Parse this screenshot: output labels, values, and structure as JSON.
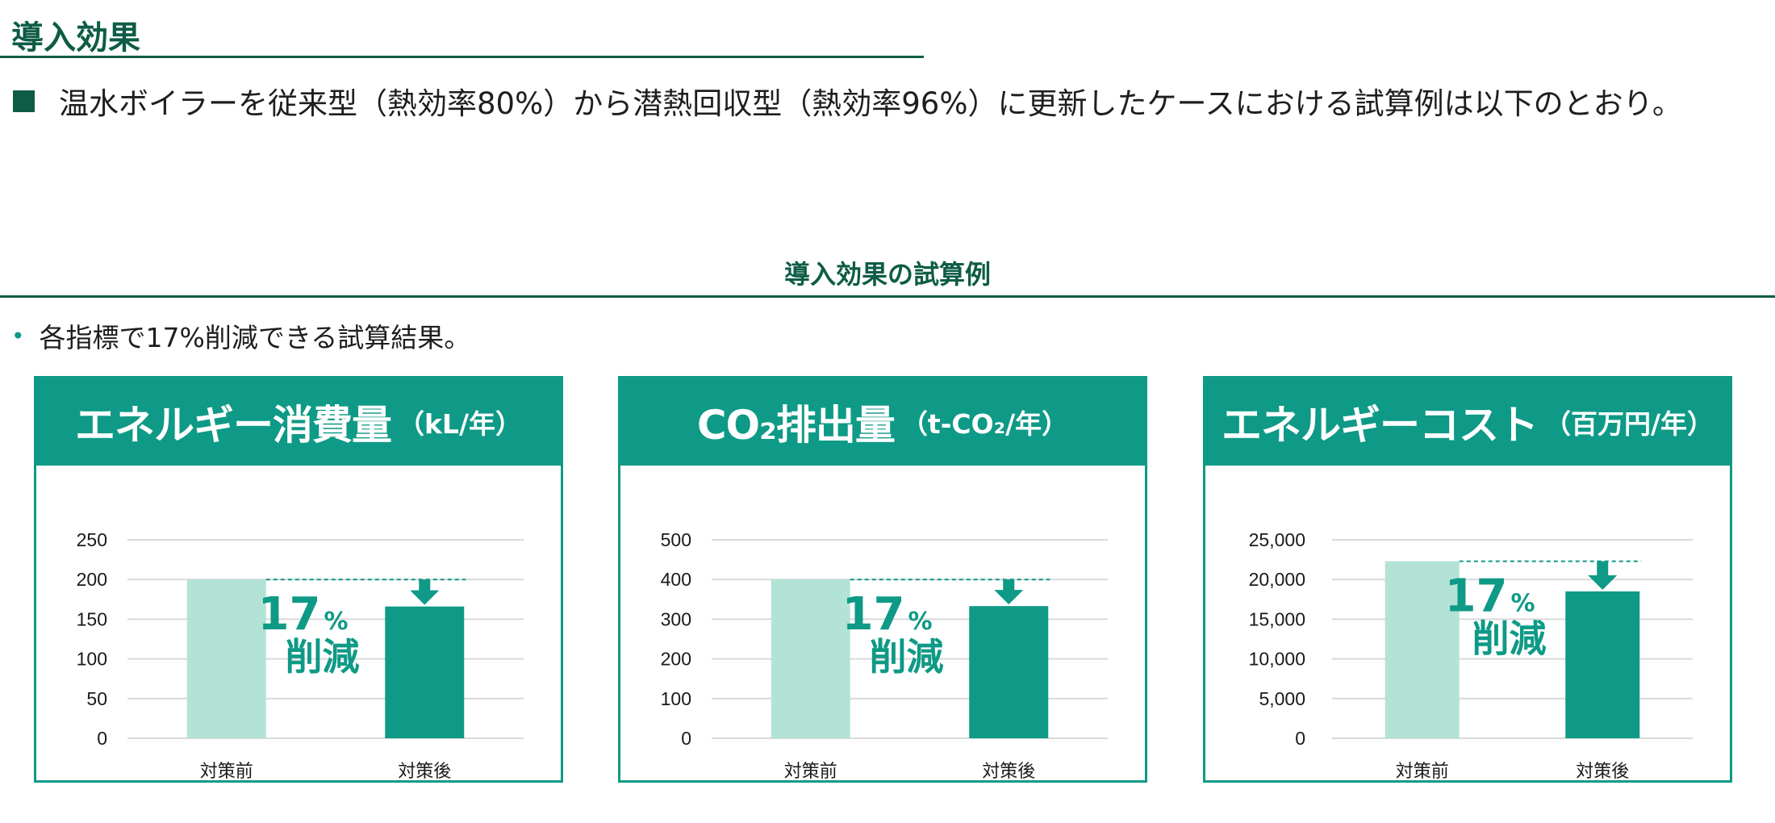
{
  "header": {
    "title": "導入効果",
    "lead": "温水ボイラーを従来型（熱効率80%）から潜熱回収型（熱効率96%）に更新したケースにおける試算例は以下のとおり。"
  },
  "section": {
    "title": "導入効果の試算例",
    "bullet": "各指標で17%削減できる試算結果。"
  },
  "colors": {
    "dark_green": "#0e5c45",
    "teal": "#0e9a86",
    "light_bar": "#b3e3d6",
    "dark_bar": "#0e9a86",
    "grid": "#d9d9d9"
  },
  "icons": [
    "square-bullet-icon",
    "dot-bullet-icon",
    "down-arrow-icon"
  ],
  "chart_data": [
    {
      "type": "bar",
      "title": "エネルギー消費量",
      "unit": "（kL/年）",
      "categories": [
        "対策前",
        "対策後"
      ],
      "values": [
        200,
        166
      ],
      "ylim": [
        0,
        250
      ],
      "yticks": [
        "0",
        "50",
        "100",
        "150",
        "200",
        "250"
      ],
      "ytick_values": [
        0,
        50,
        100,
        150,
        200,
        250
      ],
      "reduction_number": "17",
      "reduction_unit": "%",
      "reduction_label": "削減",
      "grid": true
    },
    {
      "type": "bar",
      "title": "CO₂排出量",
      "unit": "（t-CO₂/年）",
      "categories": [
        "対策前",
        "対策後"
      ],
      "values": [
        400,
        333
      ],
      "ylim": [
        0,
        500
      ],
      "yticks": [
        "0",
        "100",
        "200",
        "300",
        "400",
        "500"
      ],
      "ytick_values": [
        0,
        100,
        200,
        300,
        400,
        500
      ],
      "reduction_number": "17",
      "reduction_unit": "%",
      "reduction_label": "削減",
      "grid": true
    },
    {
      "type": "bar",
      "title": "エネルギーコスト",
      "unit": "（百万円/年）",
      "categories": [
        "対策前",
        "対策後"
      ],
      "values": [
        22300,
        18500
      ],
      "ylim": [
        0,
        25000
      ],
      "yticks": [
        "0",
        "5,000",
        "10,000",
        "15,000",
        "20,000",
        "25,000"
      ],
      "ytick_values": [
        0,
        5000,
        10000,
        15000,
        20000,
        25000
      ],
      "reduction_number": "17",
      "reduction_unit": "%",
      "reduction_label": "削減",
      "grid": true
    }
  ]
}
